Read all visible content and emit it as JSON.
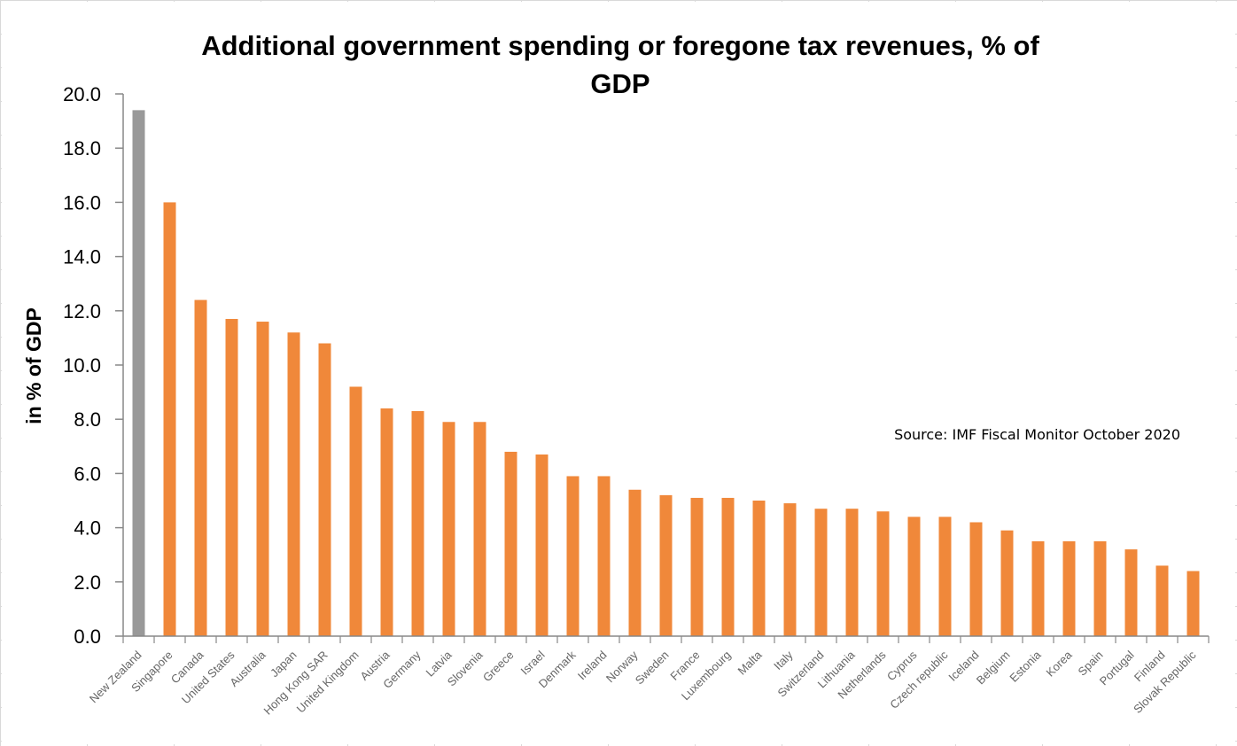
{
  "chart_data": {
    "type": "bar",
    "title_lines": [
      "Additional government spending or foregone tax revenues, % of",
      "GDP"
    ],
    "ylabel": "in % of GDP",
    "xlabel": "",
    "ylim": [
      0,
      20
    ],
    "y_ticks": [
      "0.0",
      "2.0",
      "4.0",
      "6.0",
      "8.0",
      "10.0",
      "12.0",
      "14.0",
      "16.0",
      "18.0",
      "20.0"
    ],
    "annotation": "Source: IMF Fiscal Monitor October 2020",
    "grid": false,
    "legend": "none",
    "colors": {
      "default_bar": "#f0883a",
      "highlight_bar": "#999999"
    },
    "highlight_index": 0,
    "categories": [
      "New Zealand",
      "Singapore",
      "Canada",
      "United States",
      "Australia",
      "Japan",
      "Hong Kong SAR",
      "United Kingdom",
      "Austria",
      "Germany",
      "Latvia",
      "Slovenia",
      "Greece",
      "Israel",
      "Denmark",
      "Ireland",
      "Norway",
      "Sweden",
      "France",
      "Luxembourg",
      "Malta",
      "Italy",
      "Switzerland",
      "Lithuania",
      "Netherlands",
      "Cyprus",
      "Czech republic",
      "Iceland",
      "Belgium",
      "Estonia",
      "Korea",
      "Spain",
      "Portugal",
      "Finland",
      "Slovak Republic"
    ],
    "values": [
      19.4,
      16.0,
      12.4,
      11.7,
      11.6,
      11.2,
      10.8,
      9.2,
      8.4,
      8.3,
      7.9,
      7.9,
      6.8,
      6.7,
      5.9,
      5.9,
      5.4,
      5.2,
      5.1,
      5.1,
      5.0,
      4.9,
      4.7,
      4.7,
      4.6,
      4.4,
      4.4,
      4.2,
      3.9,
      3.5,
      3.5,
      3.5,
      3.2,
      2.6,
      2.4
    ]
  }
}
